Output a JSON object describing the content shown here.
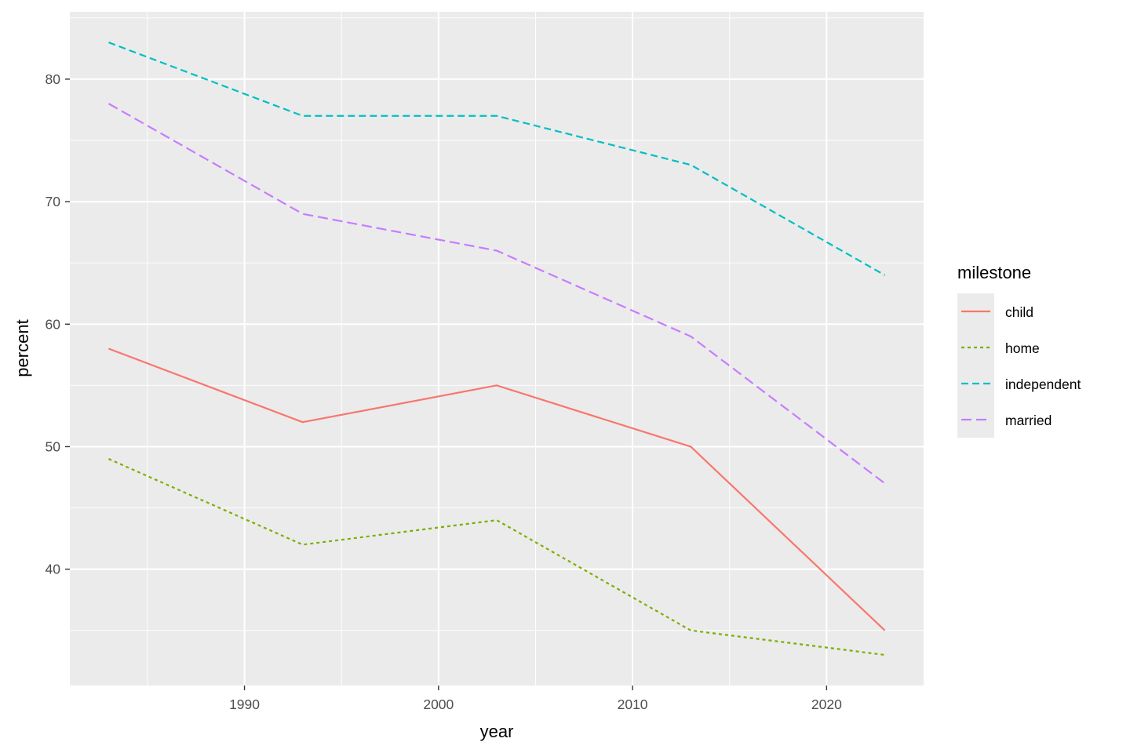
{
  "chart_data": {
    "type": "line",
    "title": "",
    "xlabel": "year",
    "ylabel": "percent",
    "x": [
      1983,
      1993,
      2003,
      2013,
      2023
    ],
    "xlim": [
      1981,
      2025
    ],
    "ylim": [
      30.5,
      85.5
    ],
    "x_ticks": [
      1990,
      2000,
      2010,
      2020
    ],
    "y_ticks": [
      40,
      50,
      60,
      70,
      80
    ],
    "grid": true,
    "legend": {
      "title": "milestone",
      "position": "right"
    },
    "series": [
      {
        "name": "child",
        "color": "#F8766D",
        "linetype": "solid",
        "values": [
          58,
          52,
          55,
          50,
          35
        ]
      },
      {
        "name": "home",
        "color": "#7CAE00",
        "linetype": "dotted",
        "values": [
          49,
          42,
          44,
          35,
          33
        ]
      },
      {
        "name": "independent",
        "color": "#00BFC4",
        "linetype": "dashed",
        "values": [
          83,
          77,
          77,
          73,
          64
        ]
      },
      {
        "name": "married",
        "color": "#C77CFF",
        "linetype": "longdash",
        "values": [
          78,
          69,
          66,
          59,
          47
        ]
      }
    ]
  }
}
